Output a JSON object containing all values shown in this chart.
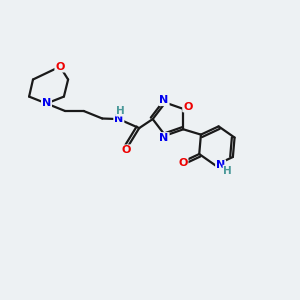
{
  "background_color": "#edf1f3",
  "bond_color": "#1a1a1a",
  "atom_colors": {
    "O": "#ee0000",
    "N": "#0000ee",
    "H": "#4a9999",
    "C": "#1a1a1a"
  },
  "line_width": 1.6,
  "figsize": [
    3.0,
    3.0
  ],
  "dpi": 100
}
